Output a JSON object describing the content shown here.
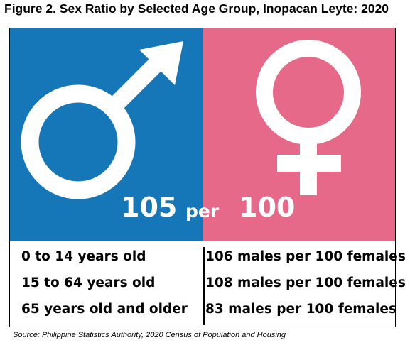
{
  "title": "Figure 2. Sex Ratio by Selected Age Group, Inopacan Leyte: 2020",
  "colors": {
    "male_bg": "#1677b8",
    "female_bg": "#e7698a",
    "symbol": "#ffffff"
  },
  "icons": {
    "male": "male-symbol-icon",
    "female": "female-symbol-icon"
  },
  "overall": {
    "males": "105",
    "per": "per",
    "females": "100"
  },
  "age_groups": [
    {
      "group": "0 to 14 years old",
      "ratio": "106 males per 100 females"
    },
    {
      "group": "15 to 64 years old",
      "ratio": "108 males per 100 females"
    },
    {
      "group": "65 years old and older",
      "ratio": "83 males per 100 females"
    }
  ],
  "source": "Source: Philippine Statistics Authority, 2020 Census of Population and Housing"
}
